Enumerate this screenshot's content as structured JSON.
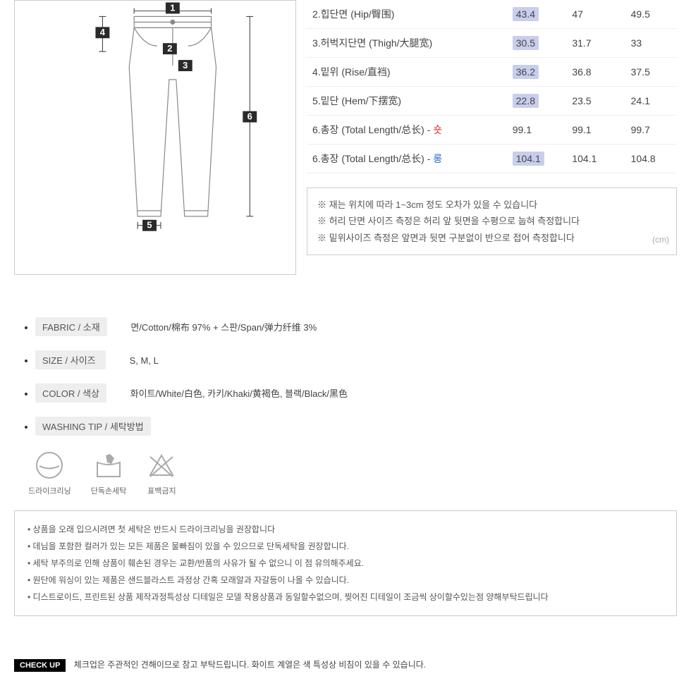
{
  "diagram": {
    "markers": [
      "1",
      "2",
      "3",
      "4",
      "5",
      "6"
    ],
    "marker_bg": "#2a2a2a",
    "marker_fg": "#ffffff",
    "stroke": "#888888"
  },
  "size_table": {
    "rows": [
      {
        "label": "2.힙단면 (Hip/臀围)",
        "vals": [
          "43.4",
          "47",
          "49.5"
        ],
        "hl": 0
      },
      {
        "label": "3.허벅지단면 (Thigh/大腿宽)",
        "vals": [
          "30.5",
          "31.7",
          "33"
        ],
        "hl": 0
      },
      {
        "label": "4.밑위 (Rise/直裆)",
        "vals": [
          "36.2",
          "36.8",
          "37.5"
        ],
        "hl": 0
      },
      {
        "label": "5.밑단 (Hem/下摆宽)",
        "vals": [
          "22.8",
          "23.5",
          "24.1"
        ],
        "hl": 0
      },
      {
        "label_html": "6.총장 (Total Length/总长) - <span class='red-text'>숏</span>",
        "vals": [
          "99.1",
          "99.1",
          "99.7"
        ],
        "hl": -1
      },
      {
        "label_html": "6.총장 (Total Length/总长) - <span class='blue-text'>롱</span>",
        "vals": [
          "104.1",
          "104.1",
          "104.8"
        ],
        "hl": 0
      }
    ],
    "row_border": "#eeeeee",
    "highlight_bg": "#c9ceed"
  },
  "notes": {
    "lines": [
      "※ 재는 위치에 따라 1~3cm 정도 오차가 있을 수 있습니다",
      "※ 허리 단면 사이즈 측정은 허리 앞 뒷면을 수평으로 눕혀 측정합니다",
      "※ 밑위사이즈 측정은 앞면과 뒷면 구분없이 반으로 접어 측정합니다"
    ],
    "unit": "(cm)"
  },
  "info": {
    "fabric": {
      "label": "FABRIC / 소재",
      "value": "면/Cotton/棉布 97% + 스판/Span/弹力纤维  3%"
    },
    "size": {
      "label": "SIZE / 사이즈",
      "value": "S, M, L"
    },
    "color": {
      "label": "COLOR / 색상",
      "value": "화이트/White/白色, 카키/Khaki/黄褐色, 블랙/Black/黑色"
    },
    "washing": {
      "label": "WASHING TIP / 세탁방법"
    }
  },
  "washing_icons": [
    {
      "name": "dryclean",
      "label": "드라이크리닝"
    },
    {
      "name": "handwash",
      "label": "단독손세탁"
    },
    {
      "name": "no-bleach",
      "label": "표백금지"
    }
  ],
  "care_notes": [
    "• 상품을 오래 입으시려면 첫 세탁은 반드시 드라이크리닝을 권장합니다",
    "• 데님을 포함한 컬러가 있는 모든 제품은 물빠짐이 있을 수 있으므로 단독세탁을 권장합니다.",
    "• 세탁 부주의로 인해 상품이 훼손된 경우는 교환/반품의 사유가 될 수 없으니 이 점 유의해주세요.",
    "• 원단에 워싱이 있는 제품은 샌드블라스트 과정상 간혹 모래알과 자갈등이 나올 수 있습니다.",
    "• 디스트로이드, 프린트된 상품 제작과정특성상 디테일은 모델 착용상품과 동일할수없으며, 찢어진 디테일이 조금씩 상이할수있는점 양해부탁드립니다"
  ],
  "checkup": {
    "badge": "CHECK UP",
    "text": "체크업은 주관적인 견해이므로 참고 부탁드립니다. 화이트 계열은 색 특성상 비침이 있을 수 있습니다."
  }
}
